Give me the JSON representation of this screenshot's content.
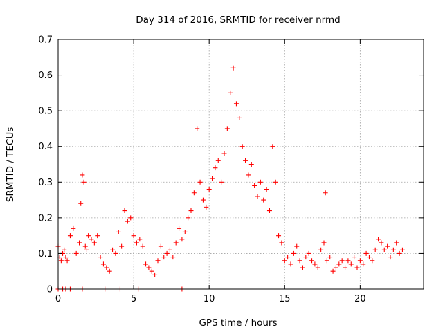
{
  "chart_data": {
    "type": "scatter",
    "title": "Day 314 of 2016, SRMTID for receiver nrmd",
    "xlabel": "GPS time / hours",
    "ylabel": "SRMTID / TECUs",
    "xlim": [
      0,
      24.2
    ],
    "ylim": [
      0,
      0.7
    ],
    "x_ticks": [
      0,
      5,
      10,
      15,
      20
    ],
    "y_ticks": [
      0,
      0.1,
      0.2,
      0.3,
      0.4,
      0.5,
      0.6,
      0.7
    ],
    "x_tick_labels": [
      "0",
      "5",
      "10",
      "15",
      "20"
    ],
    "y_tick_labels": [
      "0",
      "0.1",
      "0.2",
      "0.3",
      "0.4",
      "0.5",
      "0.6",
      "0.7"
    ],
    "grid": true,
    "marker": "+",
    "color": "#ff0000",
    "series": [
      {
        "name": "SRMTID",
        "x": [
          0.0,
          0.1,
          0.2,
          0.3,
          0.4,
          0.5,
          0.6,
          0.8,
          1.0,
          1.2,
          1.4,
          1.5,
          1.6,
          1.7,
          1.8,
          1.9,
          2.0,
          2.2,
          2.4,
          2.6,
          2.8,
          3.0,
          3.2,
          3.4,
          3.6,
          3.8,
          4.0,
          4.2,
          4.4,
          4.6,
          4.8,
          5.0,
          5.2,
          5.4,
          5.6,
          5.8,
          6.0,
          6.2,
          6.4,
          6.6,
          6.8,
          7.0,
          7.2,
          7.4,
          7.6,
          7.8,
          8.0,
          8.2,
          8.4,
          8.6,
          8.8,
          9.0,
          9.2,
          9.4,
          9.6,
          9.8,
          10.0,
          10.2,
          10.4,
          10.6,
          10.8,
          11.0,
          11.2,
          11.4,
          11.6,
          11.8,
          12.0,
          12.2,
          12.4,
          12.6,
          12.8,
          13.0,
          13.2,
          13.4,
          13.6,
          13.8,
          14.0,
          14.2,
          14.4,
          14.6,
          14.8,
          15.0,
          15.2,
          15.4,
          15.6,
          15.8,
          16.0,
          16.2,
          16.4,
          16.6,
          16.8,
          17.0,
          17.2,
          17.4,
          17.6,
          17.8,
          18.0,
          18.2,
          18.4,
          18.6,
          18.8,
          19.0,
          19.2,
          19.4,
          19.6,
          19.8,
          20.0,
          20.2,
          20.4,
          20.6,
          20.8,
          21.0,
          21.2,
          21.4,
          21.6,
          21.8,
          22.0,
          22.2,
          22.4,
          22.6,
          22.8,
          0.0,
          0.3,
          0.5,
          0.8,
          1.6,
          3.1,
          4.1,
          5.3,
          8.2,
          17.7
        ],
        "y": [
          0.12,
          0.09,
          0.08,
          0.1,
          0.11,
          0.09,
          0.08,
          0.15,
          0.17,
          0.1,
          0.13,
          0.24,
          0.32,
          0.3,
          0.12,
          0.11,
          0.15,
          0.14,
          0.13,
          0.15,
          0.09,
          0.07,
          0.06,
          0.05,
          0.11,
          0.1,
          0.16,
          0.12,
          0.22,
          0.19,
          0.2,
          0.15,
          0.13,
          0.14,
          0.12,
          0.07,
          0.06,
          0.05,
          0.04,
          0.08,
          0.12,
          0.09,
          0.1,
          0.11,
          0.09,
          0.13,
          0.17,
          0.14,
          0.16,
          0.2,
          0.22,
          0.27,
          0.45,
          0.3,
          0.25,
          0.23,
          0.28,
          0.31,
          0.34,
          0.36,
          0.3,
          0.38,
          0.45,
          0.55,
          0.62,
          0.52,
          0.48,
          0.4,
          0.36,
          0.32,
          0.35,
          0.29,
          0.26,
          0.3,
          0.25,
          0.28,
          0.22,
          0.4,
          0.3,
          0.15,
          0.13,
          0.08,
          0.09,
          0.07,
          0.1,
          0.12,
          0.08,
          0.06,
          0.09,
          0.1,
          0.08,
          0.07,
          0.06,
          0.11,
          0.13,
          0.08,
          0.09,
          0.05,
          0.06,
          0.07,
          0.08,
          0.06,
          0.08,
          0.07,
          0.09,
          0.06,
          0.08,
          0.07,
          0.1,
          0.09,
          0.08,
          0.11,
          0.14,
          0.13,
          0.11,
          0.12,
          0.09,
          0.11,
          0.13,
          0.1,
          0.11,
          0.0,
          0.0,
          0.0,
          0.0,
          0.0,
          0.0,
          0.0,
          0.0,
          0.0,
          0.27
        ]
      }
    ]
  }
}
